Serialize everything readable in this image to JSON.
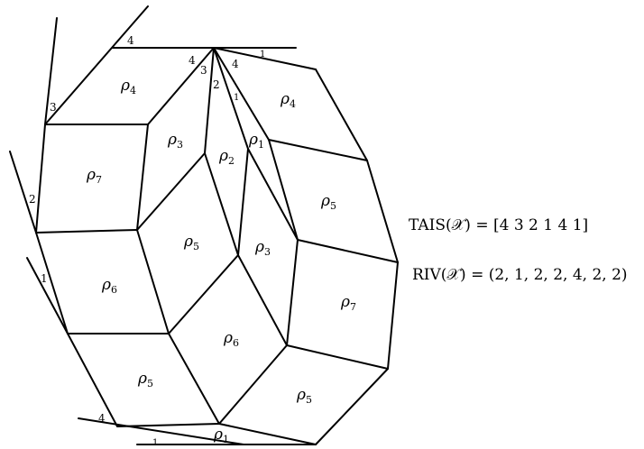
{
  "regions": [
    {
      "greek": "ρ",
      "sub": "4"
    },
    {
      "greek": "ρ",
      "sub": "4"
    },
    {
      "greek": "ρ",
      "sub": "3"
    },
    {
      "greek": "ρ",
      "sub": "2"
    },
    {
      "greek": "ρ",
      "sub": "1"
    },
    {
      "greek": "ρ",
      "sub": "7"
    },
    {
      "greek": "ρ",
      "sub": "5"
    },
    {
      "greek": "ρ",
      "sub": "5"
    },
    {
      "greek": "ρ",
      "sub": "3"
    },
    {
      "greek": "ρ",
      "sub": "6"
    },
    {
      "greek": "ρ",
      "sub": "7"
    },
    {
      "greek": "ρ",
      "sub": "6"
    },
    {
      "greek": "ρ",
      "sub": "5"
    },
    {
      "greek": "ρ",
      "sub": "5"
    },
    {
      "greek": "ρ",
      "sub": "1"
    }
  ],
  "edge_labels": [
    "4",
    "4",
    "3",
    "2",
    "4",
    "1",
    "1",
    "3",
    "2",
    "1",
    "4",
    "1"
  ],
  "tais": {
    "label": "TAIS(𝒳) = [4 3 2 1 4 1]"
  },
  "riv": {
    "label": "RIV(𝒳) = (2, 1, 2, 2, 4, 2, 2)"
  }
}
